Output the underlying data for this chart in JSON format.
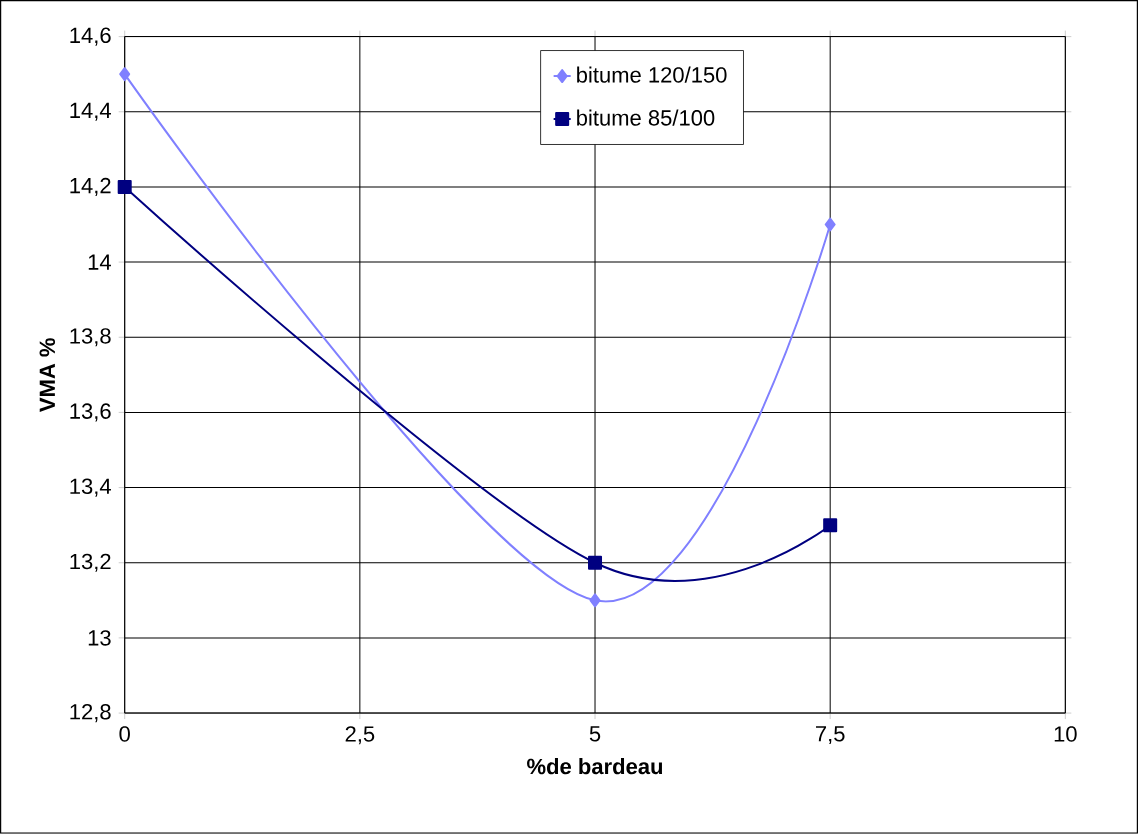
{
  "chart_data": {
    "type": "line",
    "xlabel": "%de bardeau",
    "ylabel": "VMA  %",
    "x": [
      0,
      5,
      7.5
    ],
    "series": [
      {
        "name": "bitume 120/150",
        "color": "#8080ff",
        "marker": "diamond",
        "values": [
          14.5,
          13.1,
          14.1
        ]
      },
      {
        "name": "bitume 85/100",
        "color": "#000080",
        "marker": "square",
        "values": [
          14.2,
          13.2,
          13.3
        ]
      }
    ],
    "xlim": [
      0,
      10
    ],
    "ylim": [
      12.8,
      14.6
    ],
    "xticks": [
      0,
      {
        "value": 2.5,
        "label": "2,5"
      },
      5,
      {
        "value": 7.5,
        "label": "7,5"
      },
      10
    ],
    "yticks": [
      {
        "value": 12.8,
        "label": "12,8"
      },
      13,
      {
        "value": 13.2,
        "label": "13,2"
      },
      {
        "value": 13.4,
        "label": "13,4"
      },
      {
        "value": 13.6,
        "label": "13,6"
      },
      {
        "value": 13.8,
        "label": "13,8"
      },
      14,
      {
        "value": 14.2,
        "label": "14,2"
      },
      {
        "value": 14.4,
        "label": "14,4"
      },
      {
        "value": 14.6,
        "label": "14,6"
      }
    ],
    "grid": true,
    "legend": "top"
  }
}
